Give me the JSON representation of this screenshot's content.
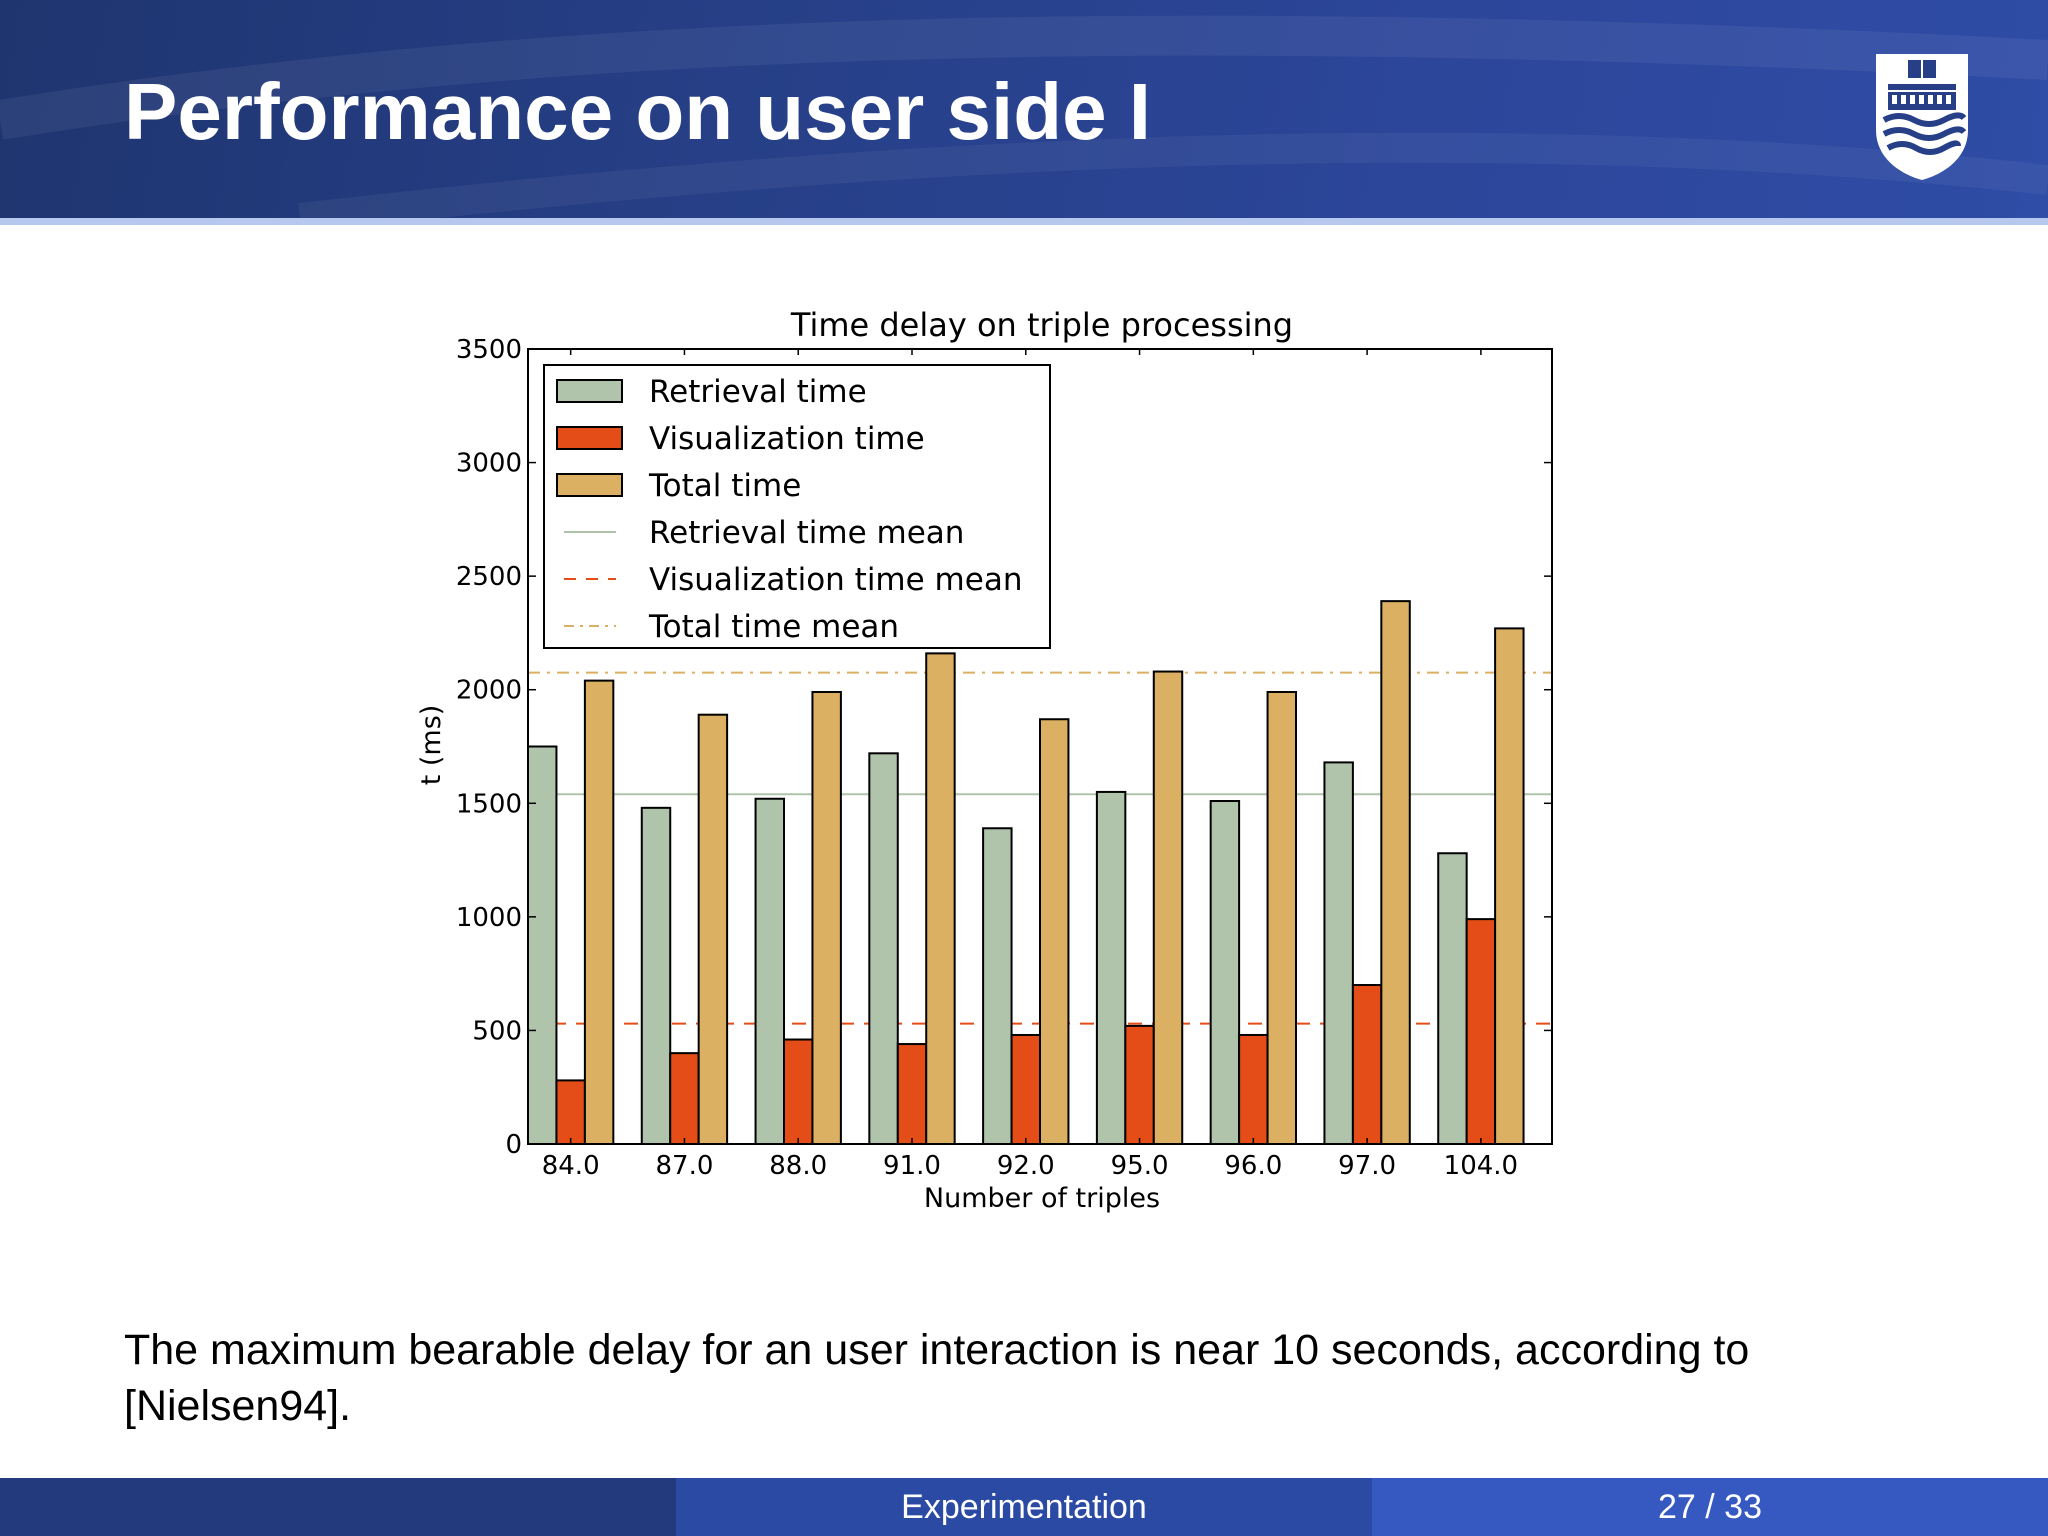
{
  "slide": {
    "title": "Performance on user side I",
    "caption": "The maximum bearable delay for an user interaction is near 10 seconds, according to [Nielsen94]."
  },
  "footer": {
    "section": "Experimentation",
    "page": "27 / 33"
  },
  "logo": {
    "icon": "university-shield-logo-icon"
  },
  "colors": {
    "header": "#263f86",
    "retrieval": "#b0c4ac",
    "visualization": "#e44d17",
    "total": "#dbb063"
  },
  "chart_data": {
    "type": "bar",
    "title": "Time delay on triple processing",
    "xlabel": "Number of triples",
    "ylabel": "t (ms)",
    "ylim": [
      0,
      3500
    ],
    "yticks": [
      0,
      500,
      1000,
      1500,
      2000,
      2500,
      3000,
      3500
    ],
    "categories": [
      "84.0",
      "87.0",
      "88.0",
      "91.0",
      "92.0",
      "95.0",
      "96.0",
      "97.0",
      "104.0"
    ],
    "series": [
      {
        "name": "Retrieval time",
        "color": "#b0c4ac",
        "values": [
          1750,
          1480,
          1520,
          1720,
          1390,
          1550,
          1510,
          1680,
          1280
        ]
      },
      {
        "name": "Visualization time",
        "color": "#e44d17",
        "values": [
          280,
          400,
          460,
          440,
          480,
          520,
          480,
          700,
          990
        ]
      },
      {
        "name": "Total time",
        "color": "#dbb063",
        "values": [
          2040,
          1890,
          1990,
          2160,
          1870,
          2080,
          1990,
          2390,
          2270
        ]
      }
    ],
    "means": [
      {
        "name": "Retrieval time mean",
        "value": 1540,
        "color": "#b0c4ac",
        "style": "solid"
      },
      {
        "name": "Visualization time mean",
        "value": 530,
        "color": "#e44d17",
        "style": "dashed"
      },
      {
        "name": "Total time mean",
        "value": 2075,
        "color": "#dbb063",
        "style": "dashdot"
      }
    ],
    "legend": "top-left",
    "grid": false
  }
}
